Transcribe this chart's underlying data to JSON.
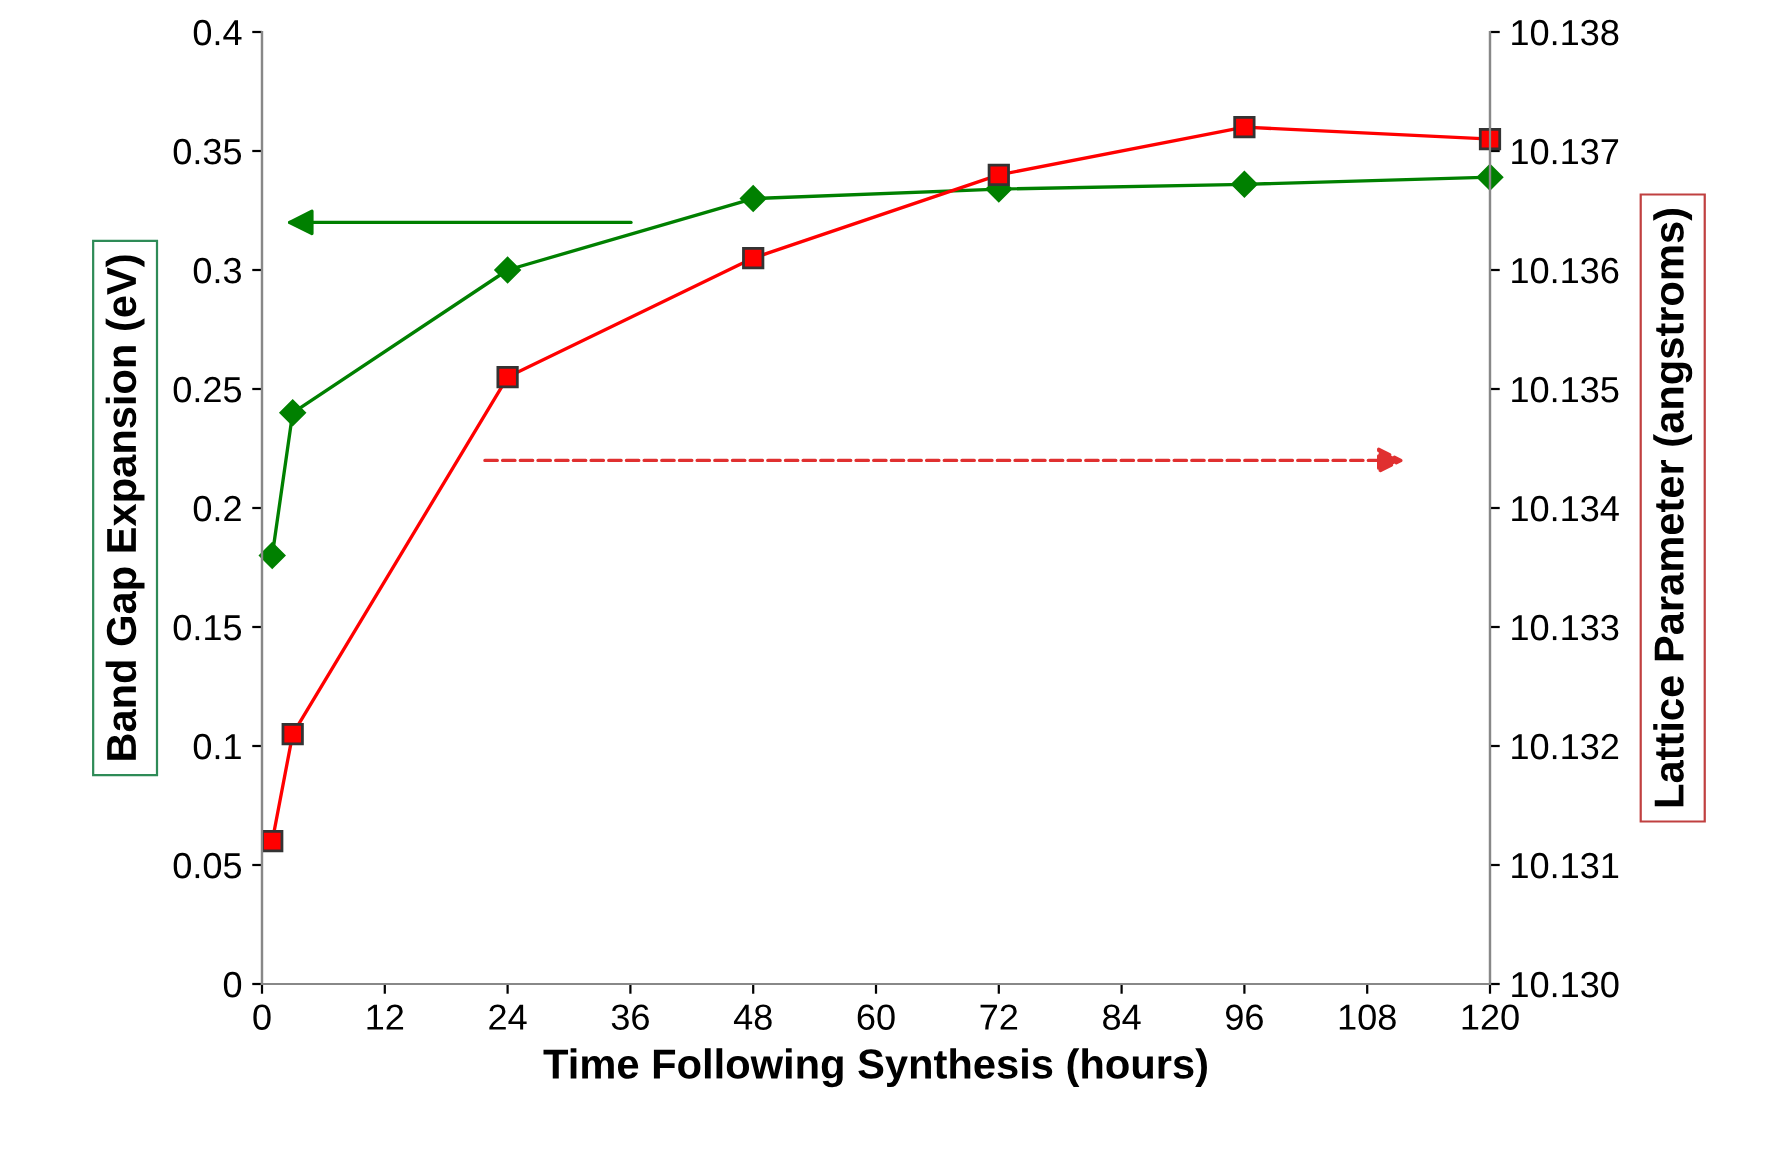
{
  "chart_data": {
    "type": "line",
    "xlabel": "Time Following Synthesis (hours)",
    "ylabel": "Band Gap Expansion (eV)",
    "y2label": "Lattice Parameter (angstroms)",
    "xlim": [
      0,
      120
    ],
    "xticks": [
      0,
      12,
      24,
      36,
      48,
      60,
      72,
      84,
      96,
      108,
      120
    ],
    "ylim": [
      0,
      0.4
    ],
    "yticks": [
      0,
      0.05,
      0.1,
      0.15,
      0.2,
      0.25,
      0.3,
      0.35,
      0.4
    ],
    "y2lim": [
      10.13,
      10.138
    ],
    "y2ticks": [
      {
        "value": 10.13,
        "label": "10.130"
      },
      {
        "value": 10.131,
        "label": "10.131"
      },
      {
        "value": 10.132,
        "label": "10.132"
      },
      {
        "value": 10.133,
        "label": "10.133"
      },
      {
        "value": 10.134,
        "label": "10.134"
      },
      {
        "value": 10.135,
        "label": "10.135"
      },
      {
        "value": 10.136,
        "label": "10.136"
      },
      {
        "value": 10.137,
        "label": "10.137"
      },
      {
        "value": 10.138,
        "label": "10.138"
      }
    ],
    "grid": false,
    "legend": false,
    "series": [
      {
        "color": "#008000",
        "marker": "diamond",
        "x": [
          1,
          3,
          24,
          48,
          72,
          96,
          120
        ],
        "values": [
          0.18,
          0.24,
          0.3,
          0.33,
          0.334,
          0.336,
          0.339
        ]
      },
      {
        "color": "#ff0000",
        "marker": "square",
        "axis": "y2",
        "x": [
          1,
          3,
          24,
          48,
          72,
          96,
          120
        ],
        "values": [
          10.1312,
          10.1321,
          10.1351,
          10.1361,
          10.1368,
          10.1372,
          10.1371
        ]
      }
    ]
  }
}
